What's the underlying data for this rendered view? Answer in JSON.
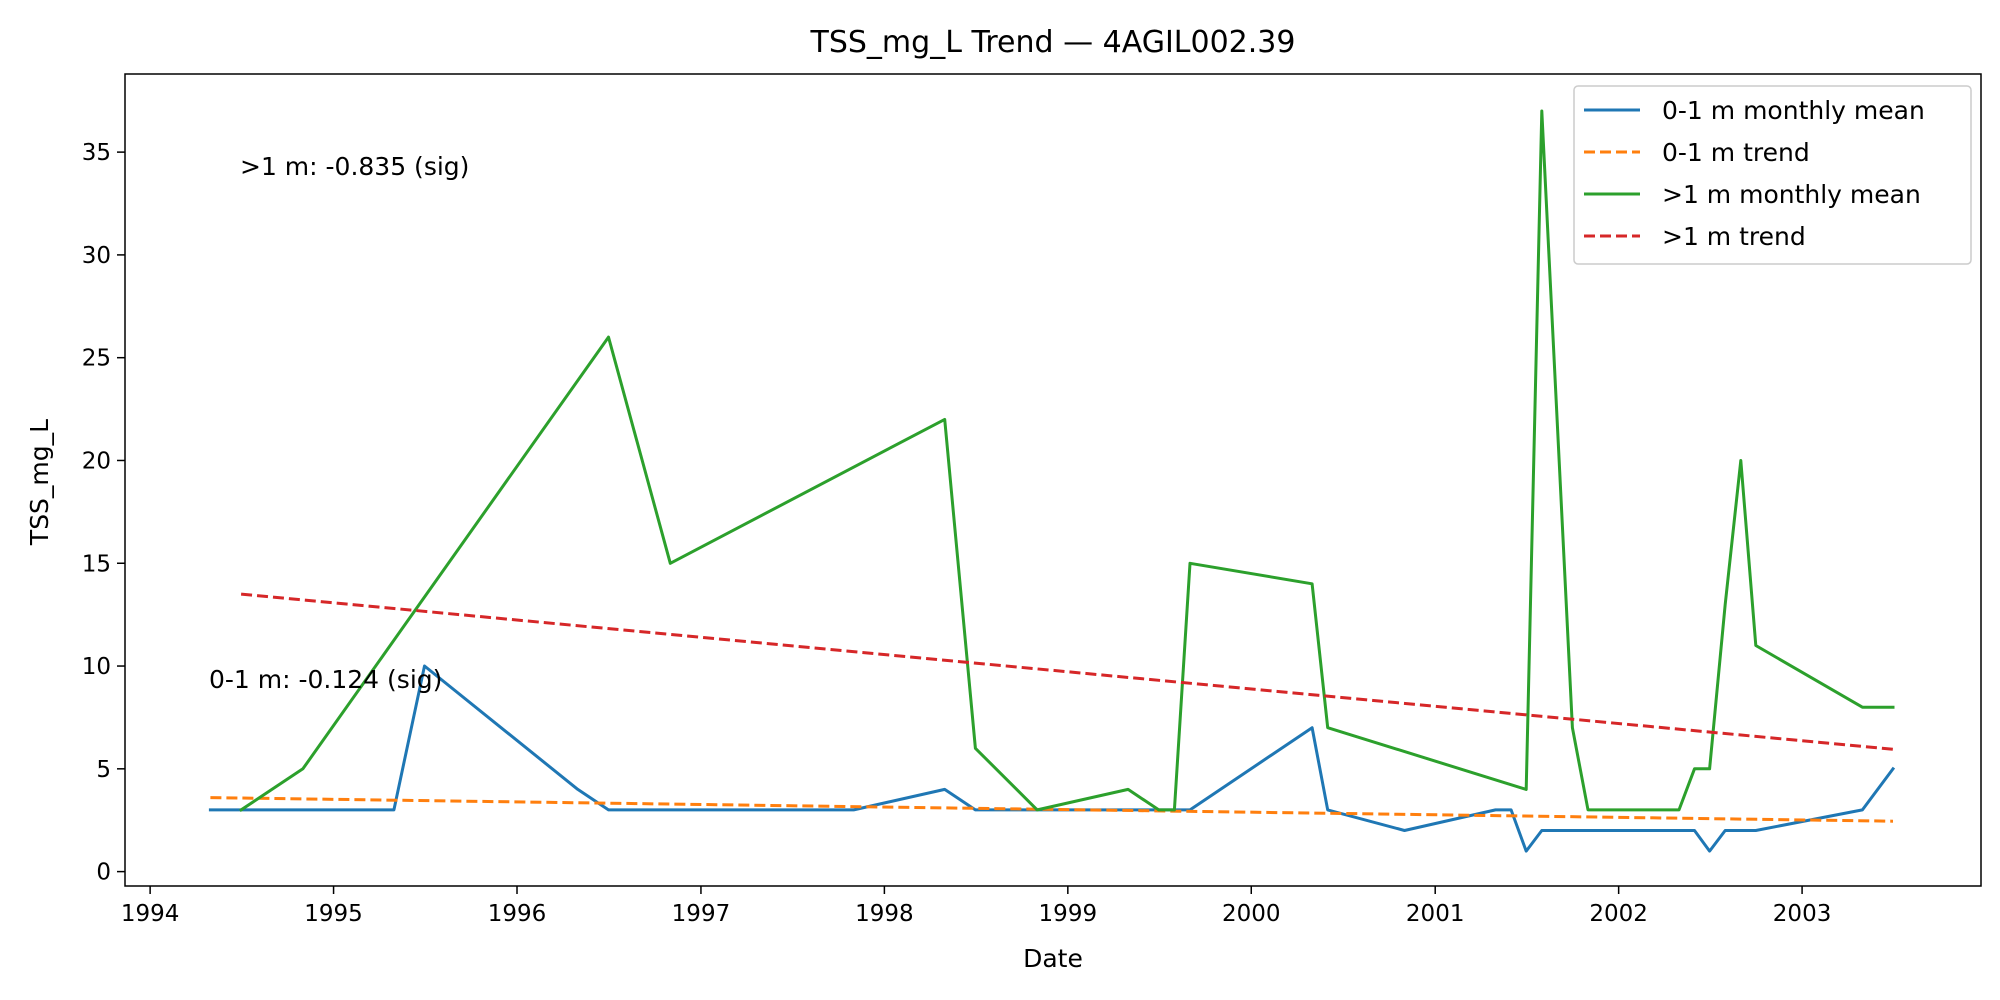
{
  "chart_data": {
    "type": "line",
    "title": "TSS_mg_L Trend — 4AGIL002.39",
    "xlabel": "Date",
    "ylabel": "TSS_mg_L",
    "xlim": [
      "1993-11-12",
      "2003-12-23"
    ],
    "ylim": [
      -0.7,
      38.8
    ],
    "x_ticks": [
      "1994",
      "1995",
      "1996",
      "1997",
      "1998",
      "1999",
      "2000",
      "2001",
      "2002",
      "2003"
    ],
    "y_ticks": [
      0,
      5,
      10,
      15,
      20,
      25,
      30,
      35
    ],
    "grid": false,
    "legend_position": "top-right",
    "series": [
      {
        "name": "0-1 m monthly mean",
        "color": "#1f77b4",
        "style": "solid",
        "x": [
          "1994-05-01",
          "1994-07-01",
          "1995-05-01",
          "1995-07-01",
          "1996-05-01",
          "1996-07-01",
          "1997-11-01",
          "1998-05-01",
          "1998-07-01",
          "1998-11-01",
          "1999-05-01",
          "1999-07-01",
          "1999-09-01",
          "2000-05-01",
          "2000-06-01",
          "2000-11-01",
          "2001-05-01",
          "2001-06-01",
          "2001-07-01",
          "2001-08-01",
          "2001-09-01",
          "2001-11-01",
          "2002-05-01",
          "2002-06-01",
          "2002-07-01",
          "2002-08-01",
          "2002-10-01",
          "2003-05-01",
          "2003-07-01"
        ],
        "y": [
          3,
          3,
          3,
          10,
          4,
          3,
          3,
          4,
          3,
          3,
          3,
          3,
          3,
          7,
          3,
          2,
          3,
          3,
          1,
          2,
          2,
          2,
          2,
          2,
          1,
          2,
          2,
          3,
          5
        ]
      },
      {
        "name": "0-1 m trend",
        "color": "#ff7f0e",
        "style": "dashed",
        "x": [
          "1994-05-01",
          "2003-07-01"
        ],
        "y": [
          3.6,
          2.45
        ]
      },
      {
        "name": ">1 m monthly mean",
        "color": "#2ca02c",
        "style": "solid",
        "x": [
          "1994-07-01",
          "1994-11-01",
          "1996-07-01",
          "1996-11-01",
          "1998-05-01",
          "1998-07-01",
          "1998-11-01",
          "1999-05-01",
          "1999-07-01",
          "1999-08-01",
          "1999-09-01",
          "2000-05-01",
          "2000-06-01",
          "2001-07-01",
          "2001-08-01",
          "2001-10-01",
          "2001-11-01",
          "2002-05-01",
          "2002-06-01",
          "2002-07-01",
          "2002-08-01",
          "2002-09-01",
          "2002-10-01",
          "2003-05-01",
          "2003-07-01"
        ],
        "y": [
          3,
          5,
          26,
          15,
          22,
          6,
          3,
          4,
          3,
          3,
          15,
          14,
          7,
          4,
          37,
          7,
          3,
          3,
          5,
          5,
          13,
          20,
          11,
          8,
          8
        ]
      },
      {
        "name": ">1 m trend",
        "color": "#d62728",
        "style": "dashed",
        "x": [
          "1994-07-01",
          "2003-07-01"
        ],
        "y": [
          13.5,
          5.95
        ]
      }
    ],
    "annotations": [
      {
        "text": ">1 m: -0.835 (sig)"
      },
      {
        "text": "0-1 m: -0.124 (sig)"
      }
    ]
  }
}
